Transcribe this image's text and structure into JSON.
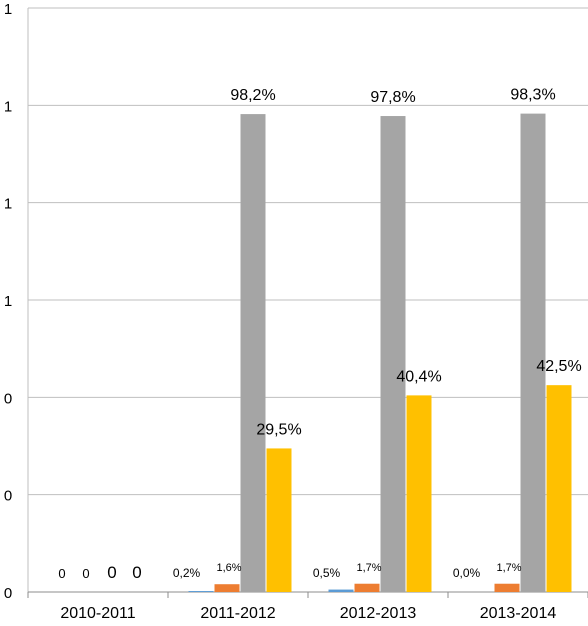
{
  "chart_data": {
    "type": "bar",
    "categories": [
      "2010-2011",
      "2011-2012",
      "2012-2013",
      "2013-2014"
    ],
    "y_tick_labels": [
      "0",
      "0",
      "0",
      "1",
      "1",
      "1",
      "1"
    ],
    "ylim": [
      0,
      1.2
    ],
    "grid": true,
    "series": [
      {
        "color": "#5B9BD5",
        "values": [
          0,
          0.002,
          0.005,
          0.0
        ],
        "labels": [
          "0",
          "0,2%",
          "0,5%",
          "0,0%"
        ]
      },
      {
        "color": "#ED7D31",
        "values": [
          0,
          0.016,
          0.017,
          0.017
        ],
        "labels": [
          "0",
          "1,6%",
          "1,7%",
          "1,7%"
        ]
      },
      {
        "color": "#A5A5A5",
        "values": [
          0,
          0.982,
          0.978,
          0.983
        ],
        "labels": [
          "0",
          "98,2%",
          "97,8%",
          "98,3%"
        ]
      },
      {
        "color": "#FFC000",
        "values": [
          0,
          0.295,
          0.404,
          0.425
        ],
        "labels": [
          "0",
          "29,5%",
          "40,4%",
          "42,5%"
        ]
      }
    ]
  }
}
